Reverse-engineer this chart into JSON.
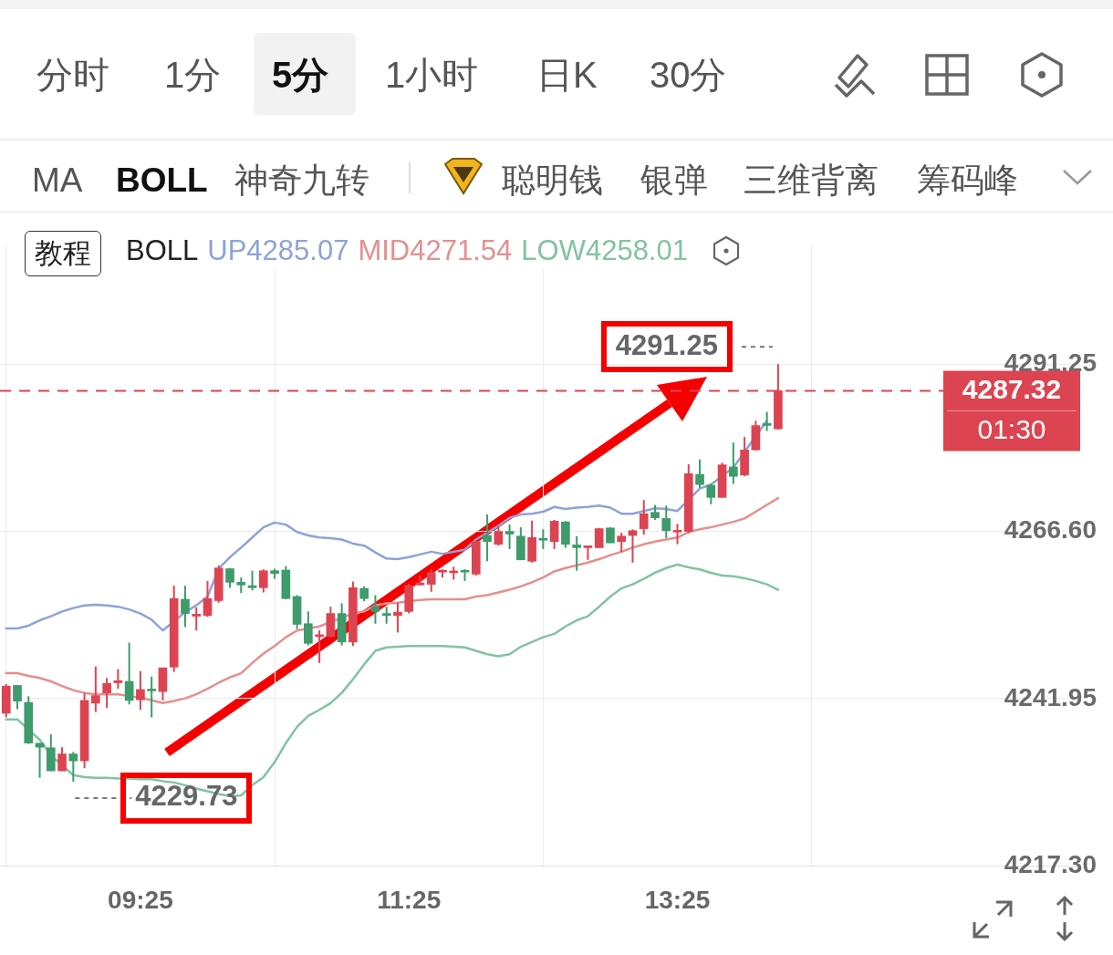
{
  "chart_data": [
    {
      "type": "other",
      "annotations": [
        "分时",
        "1分",
        "5分",
        "1小时",
        "日K",
        "30分",
        "MA",
        "BOLL",
        "神奇九转",
        "聪明钱",
        "银弹",
        "三维背离",
        "筹码峰"
      ]
    },
    {
      "type": "candlestick",
      "categories": [
        null,
        null,
        null,
        null,
        null,
        null,
        null,
        null,
        null,
        null,
        null,
        null,
        "09:25",
        null,
        null,
        null,
        null,
        null,
        null,
        null,
        null,
        null,
        null,
        null,
        null,
        null,
        null,
        null,
        null,
        null,
        null,
        null,
        null,
        null,
        null,
        null,
        "11:25",
        null,
        null,
        null,
        null,
        null,
        null,
        null,
        null,
        null,
        null,
        null,
        null,
        null,
        null,
        null,
        null,
        null,
        null,
        null,
        null,
        null,
        null,
        null,
        "13:25",
        null,
        null,
        null,
        null,
        null,
        null,
        null,
        null,
        null
      ],
      "ohlc": [
        [
          4239.8,
          4244.1,
          4239.2,
          4243.8
        ],
        [
          4243.9,
          4243.9,
          4240.4,
          4241.6
        ],
        [
          4241.4,
          4242.3,
          4235.3,
          4235.4
        ],
        [
          4235.4,
          4235.4,
          4230.3,
          4234.8
        ],
        [
          4234.7,
          4236.7,
          4231.3,
          4231.3
        ],
        [
          4231.3,
          4234.8,
          4231.3,
          4233.8
        ],
        [
          4233.8,
          4234.1,
          4229.73,
          4232.8
        ],
        [
          4232.8,
          4242.8,
          4231.7,
          4241.7
        ],
        [
          4241.3,
          4246.7,
          4240.0,
          4242.4
        ],
        [
          4242.8,
          4245.0,
          4240.6,
          4244.2
        ],
        [
          4244.3,
          4246.3,
          4243.4,
          4244.6
        ],
        [
          4244.5,
          4250.2,
          4241.1,
          4241.7
        ],
        [
          4241.8,
          4246.0,
          4240.3,
          4243.3
        ],
        [
          4243.3,
          4245.2,
          4239.2,
          4243.1
        ],
        [
          4243.0,
          4246.5,
          4241.7,
          4246.5
        ],
        [
          4246.6,
          4258.6,
          4245.9,
          4256.7
        ],
        [
          4256.6,
          4258.6,
          4252.5,
          4254.5
        ],
        [
          4254.1,
          4255.4,
          4252.0,
          4254.4
        ],
        [
          4254.2,
          4259.3,
          4254.0,
          4256.7
        ],
        [
          4256.4,
          4261.6,
          4256.1,
          4261.2
        ],
        [
          4261.1,
          4261.2,
          4258.3,
          4259.1
        ],
        [
          4259.1,
          4259.8,
          4257.5,
          4258.7
        ],
        [
          4258.6,
          4260.8,
          4257.9,
          4258.3
        ],
        [
          4258.3,
          4261.0,
          4257.6,
          4260.8
        ],
        [
          4260.8,
          4261.1,
          4259.6,
          4260.4
        ],
        [
          4260.9,
          4261.5,
          4256.6,
          4256.7
        ],
        [
          4257.0,
          4257.2,
          4252.2,
          4252.9
        ],
        [
          4253.0,
          4254.8,
          4249.8,
          4250.1
        ],
        [
          4251.1,
          4252.0,
          4247.2,
          4251.3
        ],
        [
          4251.1,
          4255.5,
          4251.0,
          4254.5
        ],
        [
          4254.5,
          4256.0,
          4249.8,
          4250.3
        ],
        [
          4250.3,
          4259.2,
          4249.7,
          4258.3
        ],
        [
          4258.2,
          4258.5,
          4256.3,
          4256.7
        ],
        [
          4255.5,
          4257.2,
          4253.0,
          4254.8
        ],
        [
          4254.5,
          4255.5,
          4253.0,
          4254.2
        ],
        [
          4254.2,
          4256.1,
          4251.7,
          4254.7
        ],
        [
          4254.8,
          4258.9,
          4254.5,
          4258.6
        ],
        [
          4258.7,
          4260.1,
          4258.6,
          4259.0
        ],
        [
          4258.8,
          4261.0,
          4257.7,
          4260.5
        ],
        [
          4260.6,
          4261.0,
          4259.8,
          4260.8
        ],
        [
          4260.5,
          4261.4,
          4259.5,
          4260.7
        ],
        [
          4260.8,
          4261.0,
          4259.3,
          4260.6
        ],
        [
          4260.3,
          4265.3,
          4260.1,
          4265.1
        ],
        [
          4266.0,
          4269.1,
          4262.2,
          4265.1
        ],
        [
          4264.7,
          4267.3,
          4264.5,
          4266.6
        ],
        [
          4266.6,
          4267.6,
          4264.0,
          4266.2
        ],
        [
          4265.9,
          4267.2,
          4262.4,
          4262.4
        ],
        [
          4262.2,
          4268.2,
          4262.0,
          4265.7
        ],
        [
          4265.5,
          4266.9,
          4264.0,
          4265.3
        ],
        [
          4265.1,
          4268.3,
          4264.0,
          4268.1
        ],
        [
          4268.0,
          4268.1,
          4264.2,
          4264.7
        ],
        [
          4264.6,
          4265.9,
          4260.8,
          4264.2
        ],
        [
          4264.2,
          4264.5,
          4262.4,
          4264.3
        ],
        [
          4264.2,
          4267.1,
          4264.2,
          4267.0
        ],
        [
          4267.1,
          4267.2,
          4264.9,
          4264.9
        ],
        [
          4265.1,
          4266.4,
          4263.5,
          4265.9
        ],
        [
          4266.0,
          4266.9,
          4262.0,
          4266.7
        ],
        [
          4267.0,
          4271.2,
          4266.1,
          4269.2
        ],
        [
          4269.4,
          4270.5,
          4268.3,
          4268.6
        ],
        [
          4268.5,
          4270.4,
          4265.6,
          4266.7
        ],
        [
          4266.5,
          4267.7,
          4264.7,
          4266.7
        ],
        [
          4266.6,
          4276.5,
          4266.3,
          4275.1
        ],
        [
          4275.0,
          4277.2,
          4273.0,
          4273.5
        ],
        [
          4273.4,
          4273.6,
          4270.6,
          4271.6
        ],
        [
          4271.6,
          4276.7,
          4271.6,
          4276.4
        ],
        [
          4276.1,
          4279.7,
          4273.6,
          4274.7
        ],
        [
          4274.9,
          4280.5,
          4274.7,
          4278.6
        ],
        [
          4278.6,
          4282.9,
          4278.5,
          4282.2
        ],
        [
          4282.5,
          4284.2,
          4281.4,
          4282.2
        ],
        [
          4281.7,
          4291.25,
          4281.6,
          4287.32
        ]
      ],
      "colors": [
        "#dc4452",
        "#3d9b6c",
        "#3d9b6c",
        "#3d9b6c",
        "#3d9b6c",
        "#dc4452",
        "#3d9b6c",
        "#dc4452",
        "#dc4452",
        "#dc4452",
        "#dc4452",
        "#3d9b6c",
        "#dc4452",
        "#3d9b6c",
        "#dc4452",
        "#dc4452",
        "#3d9b6c",
        "#dc4452",
        "#dc4452",
        "#dc4452",
        "#3d9b6c",
        "#3d9b6c",
        "#3d9b6c",
        "#dc4452",
        "#3d9b6c",
        "#3d9b6c",
        "#3d9b6c",
        "#3d9b6c",
        "#dc4452",
        "#dc4452",
        "#3d9b6c",
        "#dc4452",
        "#3d9b6c",
        "#3d9b6c",
        "#3d9b6c",
        "#dc4452",
        "#dc4452",
        "#dc4452",
        "#dc4452",
        "#dc4452",
        "#dc4452",
        "#3d9b6c",
        "#dc4452",
        "#3d9b6c",
        "#dc4452",
        "#3d9b6c",
        "#3d9b6c",
        "#dc4452",
        "#3d9b6c",
        "#dc4452",
        "#3d9b6c",
        "#3d9b6c",
        "#dc4452",
        "#dc4452",
        "#3d9b6c",
        "#dc4452",
        "#dc4452",
        "#dc4452",
        "#3d9b6c",
        "#3d9b6c",
        "#dc4452",
        "#dc4452",
        "#3d9b6c",
        "#3d9b6c",
        "#dc4452",
        "#3d9b6c",
        "#dc4452",
        "#dc4452",
        "#3d9b6c",
        "#dc4452"
      ],
      "series": [
        {
          "type": "line",
          "name": "UP4285.07",
          "color": "#8ea3d6",
          "values": [
            4252.3,
            4252.3,
            4252.7,
            4253.5,
            4254.1,
            4254.8,
            4255.3,
            4255.7,
            4255.8,
            4255.7,
            4255.5,
            4255.1,
            4254.5,
            4253.6,
            4252.0,
            null,
            4254.7,
            4255.7,
            4257.0,
            4261.1,
            4262.8,
            4264.2,
            4265.7,
            4267.2,
            4267.9,
            4267.6,
            4266.5,
            4266.0,
            4265.7,
            4265.6,
            4265.4,
            4264.8,
            4264.5,
            4263.5,
            4262.6,
            4262.5,
            4262.8,
            4263.2,
            4263.6,
            4263.3,
            4263.6,
            4263.9,
            4265.4,
            null,
            4267.4,
            4268.6,
            4269.1,
            4269.2,
            4269.5,
            4270.2,
            4269.9,
            4270.1,
            4270.2,
            4270.4,
            4270.1,
            4269.2,
            4269.2,
            4269.6,
            4270.0,
            4269.9,
            4269.6,
            null,
            4272.9,
            4273.5,
            null,
            4276.0,
            null,
            null,
            4282.9,
            null
          ]
        },
        {
          "type": "line",
          "name": "MID4271.54",
          "color": "#e58f8f",
          "values": [
            4245.7,
            4245.7,
            4245.3,
            4245.0,
            4244.5,
            4243.8,
            4243.2,
            4242.8,
            4242.6,
            4242.6,
            4242.6,
            null,
            4242.1,
            4241.7,
            4241.3,
            4241.6,
            4242.0,
            4242.6,
            4243.4,
            4244.3,
            4245.1,
            4245.7,
            4247.2,
            4248.6,
            4249.7,
            4251.0,
            4252.0,
            null,
            4252.6,
            null,
            null,
            4254.5,
            4254.8,
            4255.7,
            4256.0,
            4256.1,
            4256.3,
            4256.5,
            4256.6,
            4256.6,
            4256.6,
            4256.6,
            4257.0,
            4257.2,
            4257.6,
            4258.0,
            4258.5,
            4259.1,
            4259.8,
            4260.7,
            4261.2,
            4261.6,
            4262.0,
            4262.5,
            4263.1,
            4263.6,
            4264.2,
            4264.7,
            4265.1,
            4265.4,
            4265.7,
            4266.5,
            4266.9,
            4267.2,
            4267.6,
            4268.0,
            4268.5,
            4269.5,
            4270.5,
            4271.5
          ]
        },
        {
          "type": "line",
          "name": "LOW4258.01",
          "color": "#82c3a0",
          "values": [
            4238.9,
            4238.9,
            null,
            4235.9,
            4233.6,
            null,
            4230.7,
            4230.4,
            4230.3,
            4230.3,
            4230.2,
            4230.2,
            4230.1,
            4230.1,
            4229.8,
            4229.6,
            4229.2,
            4228.7,
            4228.3,
            4227.9,
            4227.6,
            4227.7,
            4229.2,
            4230.4,
            4232.6,
            4235.4,
            4237.8,
            4239.4,
            4240.3,
            4241.3,
            4242.8,
            4244.8,
            4247.0,
            4249.0,
            4249.5,
            4249.6,
            4249.7,
            4249.7,
            4249.7,
            4249.7,
            4249.6,
            4249.5,
            4249.0,
            4248.5,
            4248.2,
            4248.5,
            4249.6,
            4250.3,
            4251.0,
            4251.5,
            4252.6,
            4253.5,
            4254.1,
            4255.5,
            4257.0,
            4258.2,
            4258.8,
            4259.6,
            4260.5,
            4261.2,
            4261.7,
            4261.3,
            4261.0,
            4260.5,
            4260.1,
            4260.0,
            4259.7,
            4259.3,
            4258.8,
            4258.0
          ]
        }
      ],
      "legend_title": "BOLL",
      "legend": "top",
      "ylim": [
        4217.3,
        4308.9
      ],
      "yticks": [
        {
          "value": 4217.3,
          "label": "4217.30"
        },
        4241.95,
        {
          "value": 4266.6,
          "label": "4266.60"
        },
        4291.25
      ],
      "grid": true,
      "ref_lines": [
        {
          "axis": "y",
          "value": 4287.32,
          "label": "4287.32",
          "color": "#dc4452",
          "line_style": "dashed"
        }
      ],
      "annotations": [
        "4291.25",
        "4229.73",
        "教程",
        "01:30"
      ]
    }
  ]
}
